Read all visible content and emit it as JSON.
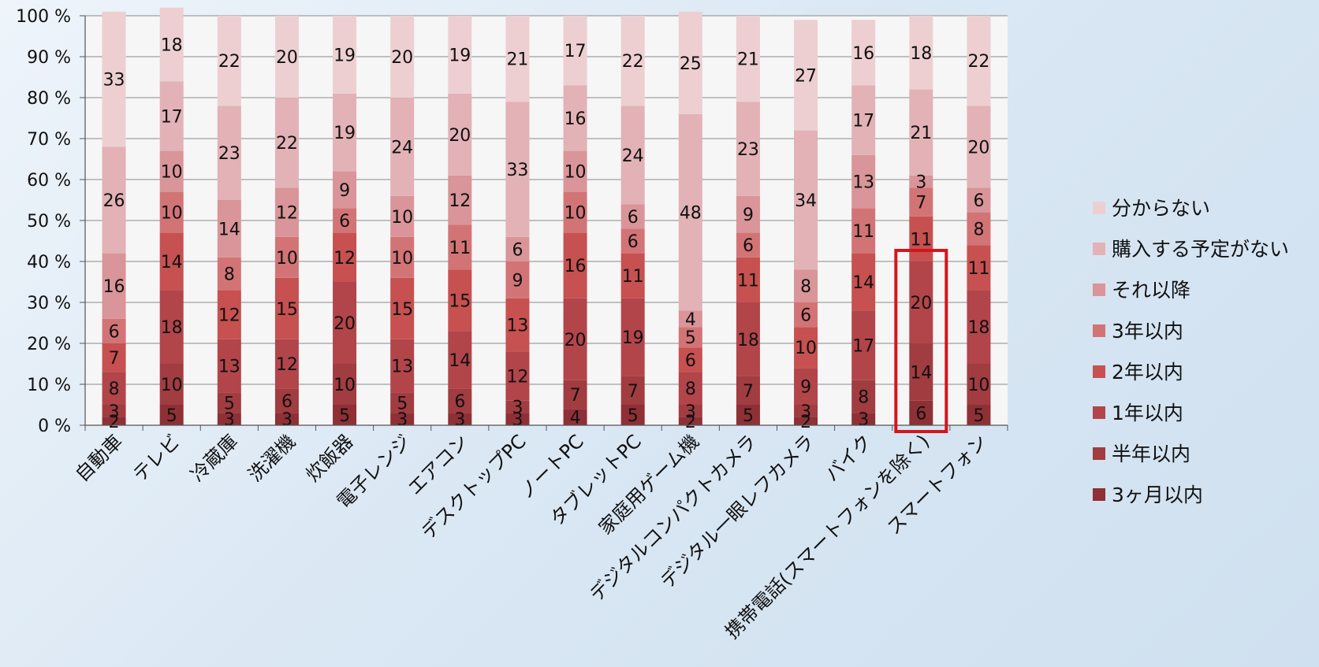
{
  "chart_data": {
    "type": "bar",
    "stacked": true,
    "title": "",
    "xlabel": "",
    "ylabel": "",
    "ylim": [
      0,
      100
    ],
    "y_ticks": [
      0,
      10,
      20,
      30,
      40,
      50,
      60,
      70,
      80,
      90,
      100
    ],
    "y_tick_suffix": " %",
    "grid": true,
    "legend_position": "right",
    "categories": [
      "自動車",
      "テレビ",
      "冷蔵庫",
      "洗濯機",
      "炊飯器",
      "電子レンジ",
      "エアコン",
      "デスクトップPC",
      "ノートPC",
      "タブレットPC",
      "家庭用ゲーム機",
      "デジタルコンパクトカメラ",
      "デジタル一眼レフカメラ",
      "バイク",
      "携帯電話(スマートフォンを除く)",
      "スマートフォン"
    ],
    "series": [
      {
        "name": "3ヶ月以内",
        "color": "#8e3035",
        "values": [
          2,
          5,
          3,
          3,
          5,
          3,
          3,
          3,
          4,
          5,
          2,
          5,
          2,
          3,
          6,
          5
        ]
      },
      {
        "name": "半年以内",
        "color": "#a13c41",
        "values": [
          3,
          10,
          5,
          6,
          10,
          5,
          6,
          3,
          7,
          7,
          3,
          7,
          3,
          8,
          14,
          10
        ]
      },
      {
        "name": "1年以内",
        "color": "#b2454a",
        "values": [
          8,
          18,
          13,
          12,
          20,
          13,
          14,
          12,
          20,
          19,
          8,
          18,
          9,
          17,
          20,
          18
        ]
      },
      {
        "name": "2年以内",
        "color": "#c65150",
        "values": [
          7,
          14,
          12,
          15,
          12,
          15,
          15,
          13,
          16,
          11,
          6,
          11,
          10,
          14,
          11,
          11
        ]
      },
      {
        "name": "3年以内",
        "color": "#d27476",
        "values": [
          6,
          10,
          8,
          10,
          6,
          10,
          11,
          9,
          10,
          6,
          5,
          6,
          6,
          11,
          7,
          8
        ]
      },
      {
        "name": "それ以降",
        "color": "#d99599",
        "values": [
          16,
          10,
          14,
          12,
          9,
          10,
          12,
          6,
          10,
          6,
          4,
          9,
          8,
          13,
          3,
          6
        ]
      },
      {
        "name": "購入する予定がない",
        "color": "#e2b2b6",
        "values": [
          26,
          17,
          23,
          22,
          19,
          24,
          20,
          33,
          16,
          24,
          48,
          23,
          34,
          17,
          21,
          20
        ]
      },
      {
        "name": "分からない",
        "color": "#edcfd2",
        "values": [
          33,
          18,
          22,
          20,
          19,
          20,
          19,
          21,
          17,
          22,
          25,
          21,
          27,
          16,
          18,
          22
        ]
      }
    ],
    "highlight": {
      "category_index": 14,
      "color": "#d4151c"
    }
  }
}
